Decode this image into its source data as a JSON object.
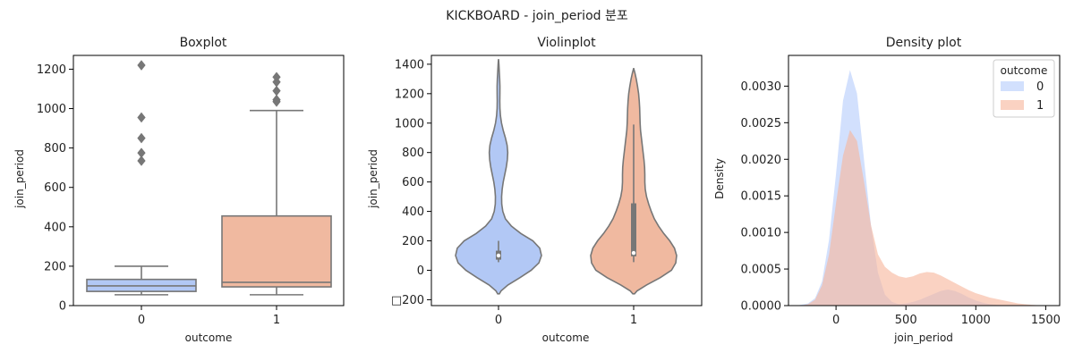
{
  "suptitle": "KICKBOARD - join_period 분포",
  "colors": {
    "outcome_0": "#b2c8f5",
    "outcome_1": "#f0b9a0",
    "line": "#777777",
    "density_0": "#b7cdfc",
    "density_1": "#f7b79c"
  },
  "chart_data": [
    {
      "type": "box",
      "title": "Boxplot",
      "xlabel": "outcome",
      "ylabel": "join_period",
      "categories": [
        "0",
        "1"
      ],
      "ylim": [
        0,
        1270
      ],
      "yticks": [
        0,
        200,
        400,
        600,
        800,
        1000,
        1200
      ],
      "boxes": [
        {
          "category": "0",
          "whisker_low": 55,
          "q1": 72,
          "median": 100,
          "q3": 133,
          "whisker_high": 200,
          "outliers": [
            1220,
            955,
            850,
            775,
            735
          ]
        },
        {
          "category": "1",
          "whisker_low": 55,
          "q1": 95,
          "median": 118,
          "q3": 455,
          "whisker_high": 990,
          "outliers": [
            1160,
            1135,
            1090,
            1045,
            1035
          ]
        }
      ]
    },
    {
      "type": "violin",
      "title": "Violinplot",
      "xlabel": "outcome",
      "ylabel": "join_period",
      "categories": [
        "0",
        "1"
      ],
      "ylim": [
        -240,
        1460
      ],
      "yticks": [
        -200,
        0,
        200,
        400,
        600,
        800,
        1000,
        1200,
        1400
      ],
      "ytick_labels": [
        "□200",
        "0",
        "200",
        "400",
        "600",
        "800",
        "1000",
        "1200",
        "1400"
      ],
      "violins": [
        {
          "category": "0",
          "profile": [
            [
              -160,
              0.02
            ],
            [
              -140,
              0.06
            ],
            [
              -100,
              0.22
            ],
            [
              -50,
              0.5
            ],
            [
              0,
              0.76
            ],
            [
              50,
              0.94
            ],
            [
              100,
              1.0
            ],
            [
              150,
              0.96
            ],
            [
              200,
              0.8
            ],
            [
              250,
              0.52
            ],
            [
              300,
              0.3
            ],
            [
              350,
              0.16
            ],
            [
              400,
              0.1
            ],
            [
              450,
              0.075
            ],
            [
              500,
              0.072
            ],
            [
              550,
              0.085
            ],
            [
              600,
              0.11
            ],
            [
              650,
              0.145
            ],
            [
              700,
              0.18
            ],
            [
              750,
              0.205
            ],
            [
              800,
              0.215
            ],
            [
              850,
              0.2
            ],
            [
              900,
              0.16
            ],
            [
              950,
              0.11
            ],
            [
              1000,
              0.07
            ],
            [
              1050,
              0.045
            ],
            [
              1100,
              0.033
            ],
            [
              1150,
              0.03
            ],
            [
              1200,
              0.032
            ],
            [
              1250,
              0.033
            ],
            [
              1300,
              0.027
            ],
            [
              1350,
              0.018
            ],
            [
              1400,
              0.009
            ],
            [
              1430,
              0.002
            ]
          ],
          "q1": 72,
          "median": 100,
          "q3": 133,
          "whisker_low": 55,
          "whisker_high": 200
        },
        {
          "category": "1",
          "profile": [
            [
              -160,
              0.02
            ],
            [
              -140,
              0.08
            ],
            [
              -100,
              0.3
            ],
            [
              -50,
              0.62
            ],
            [
              0,
              0.88
            ],
            [
              50,
              0.98
            ],
            [
              100,
              1.0
            ],
            [
              150,
              0.95
            ],
            [
              200,
              0.84
            ],
            [
              250,
              0.7
            ],
            [
              300,
              0.58
            ],
            [
              350,
              0.48
            ],
            [
              400,
              0.41
            ],
            [
              450,
              0.35
            ],
            [
              500,
              0.3
            ],
            [
              550,
              0.27
            ],
            [
              600,
              0.26
            ],
            [
              650,
              0.26
            ],
            [
              700,
              0.255
            ],
            [
              750,
              0.24
            ],
            [
              800,
              0.22
            ],
            [
              850,
              0.2
            ],
            [
              900,
              0.18
            ],
            [
              950,
              0.16
            ],
            [
              1000,
              0.15
            ],
            [
              1050,
              0.145
            ],
            [
              1100,
              0.14
            ],
            [
              1150,
              0.13
            ],
            [
              1200,
              0.115
            ],
            [
              1250,
              0.09
            ],
            [
              1300,
              0.06
            ],
            [
              1340,
              0.03
            ],
            [
              1370,
              0.002
            ]
          ],
          "q1": 95,
          "median": 118,
          "q3": 455,
          "whisker_low": 55,
          "whisker_high": 990
        }
      ]
    },
    {
      "type": "area",
      "title": "Density plot",
      "xlabel": "join_period",
      "ylabel": "Density",
      "xlim": [
        -340,
        1600
      ],
      "ylim": [
        0,
        0.00342
      ],
      "xticks": [
        0,
        500,
        1000,
        1500
      ],
      "yticks": [
        0,
        0.0005,
        0.001,
        0.0015,
        0.002,
        0.0025,
        0.003
      ],
      "ytick_labels": [
        "0.0000",
        "0.0005",
        "0.0010",
        "0.0015",
        "0.0020",
        "0.0025",
        "0.0030"
      ],
      "legend": {
        "title": "outcome",
        "position": "upper right",
        "entries": [
          "0",
          "1"
        ]
      },
      "series": [
        {
          "name": "0",
          "x": [
            -280,
            -200,
            -150,
            -100,
            -50,
            0,
            50,
            100,
            150,
            200,
            250,
            300,
            350,
            400,
            450,
            500,
            550,
            600,
            650,
            700,
            750,
            800,
            850,
            900,
            950,
            1000,
            1050,
            1100,
            1150,
            1200,
            1250,
            1300
          ],
          "y": [
            0,
            3e-05,
            0.0001,
            0.00033,
            0.0009,
            0.0018,
            0.0028,
            0.00322,
            0.0029,
            0.002,
            0.0011,
            0.00045,
            0.00015,
            5e-05,
            2e-05,
            3e-05,
            5e-05,
            8e-05,
            0.00012,
            0.00016,
            0.0002,
            0.00022,
            0.0002,
            0.00016,
            0.00011,
            7e-05,
            4e-05,
            2e-05,
            1e-05,
            5e-06,
            2e-06,
            0
          ]
        },
        {
          "name": "1",
          "x": [
            -250,
            -200,
            -150,
            -100,
            -50,
            0,
            50,
            100,
            150,
            200,
            250,
            300,
            350,
            400,
            450,
            500,
            550,
            600,
            650,
            700,
            750,
            800,
            850,
            900,
            950,
            1000,
            1050,
            1100,
            1150,
            1200,
            1250,
            1300,
            1350,
            1400,
            1450,
            1500
          ],
          "y": [
            0,
            2e-05,
            8e-05,
            0.00028,
            0.0007,
            0.0014,
            0.00205,
            0.0024,
            0.00225,
            0.0017,
            0.0011,
            0.0007,
            0.00053,
            0.00045,
            0.0004,
            0.00038,
            0.0004,
            0.00044,
            0.00046,
            0.00045,
            0.00041,
            0.00036,
            0.00031,
            0.00026,
            0.00021,
            0.00017,
            0.00014,
            0.00011,
            9e-05,
            7e-05,
            5e-05,
            3e-05,
            2e-05,
            1e-05,
            4e-06,
            0
          ]
        }
      ]
    }
  ]
}
